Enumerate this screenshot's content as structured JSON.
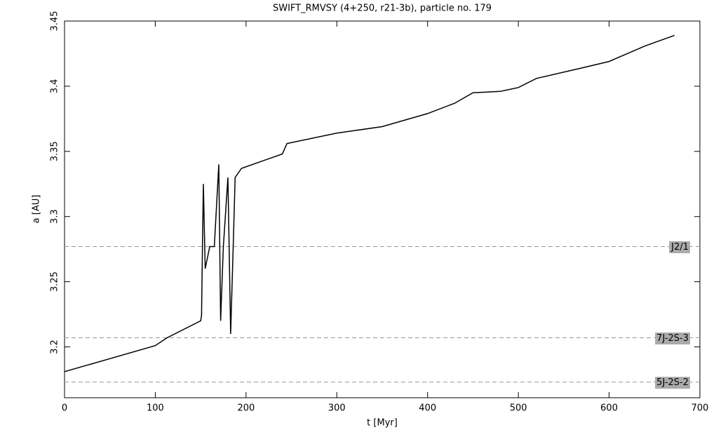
{
  "chart_data": {
    "type": "line",
    "title": "SWIFT_RMVSY (4+250, r21-3b), particle no. 179",
    "x_label": "t [Myr]",
    "y_label": "a [AU]",
    "x": [
      0,
      50,
      100,
      113,
      150,
      151,
      152,
      153,
      155,
      160,
      165,
      170,
      172,
      175,
      180,
      183,
      186,
      188,
      195,
      240,
      245,
      300,
      350,
      400,
      430,
      450,
      480,
      500,
      520,
      570,
      600,
      640,
      672
    ],
    "values": [
      3.181,
      3.191,
      3.201,
      3.207,
      3.22,
      3.224,
      3.277,
      3.325,
      3.26,
      3.277,
      3.277,
      3.34,
      3.22,
      3.277,
      3.33,
      3.21,
      3.28,
      3.33,
      3.337,
      3.348,
      3.356,
      3.364,
      3.369,
      3.379,
      3.387,
      3.395,
      3.396,
      3.399,
      3.406,
      3.414,
      3.419,
      3.431,
      3.439
    ],
    "color": "#000000",
    "xlim": [
      0,
      700
    ],
    "xticks": [
      0,
      100,
      200,
      300,
      400,
      500,
      600,
      700
    ],
    "ylim": [
      3.161,
      3.45
    ],
    "yticks": [
      3.2,
      3.25,
      3.3,
      3.35,
      3.4,
      3.45
    ],
    "reference_lines": [
      {
        "label": "J2/1",
        "value": 3.277
      },
      {
        "label": "7J-2S-3",
        "value": 3.207
      },
      {
        "label": "5J-2S-2",
        "value": 3.173
      }
    ]
  }
}
